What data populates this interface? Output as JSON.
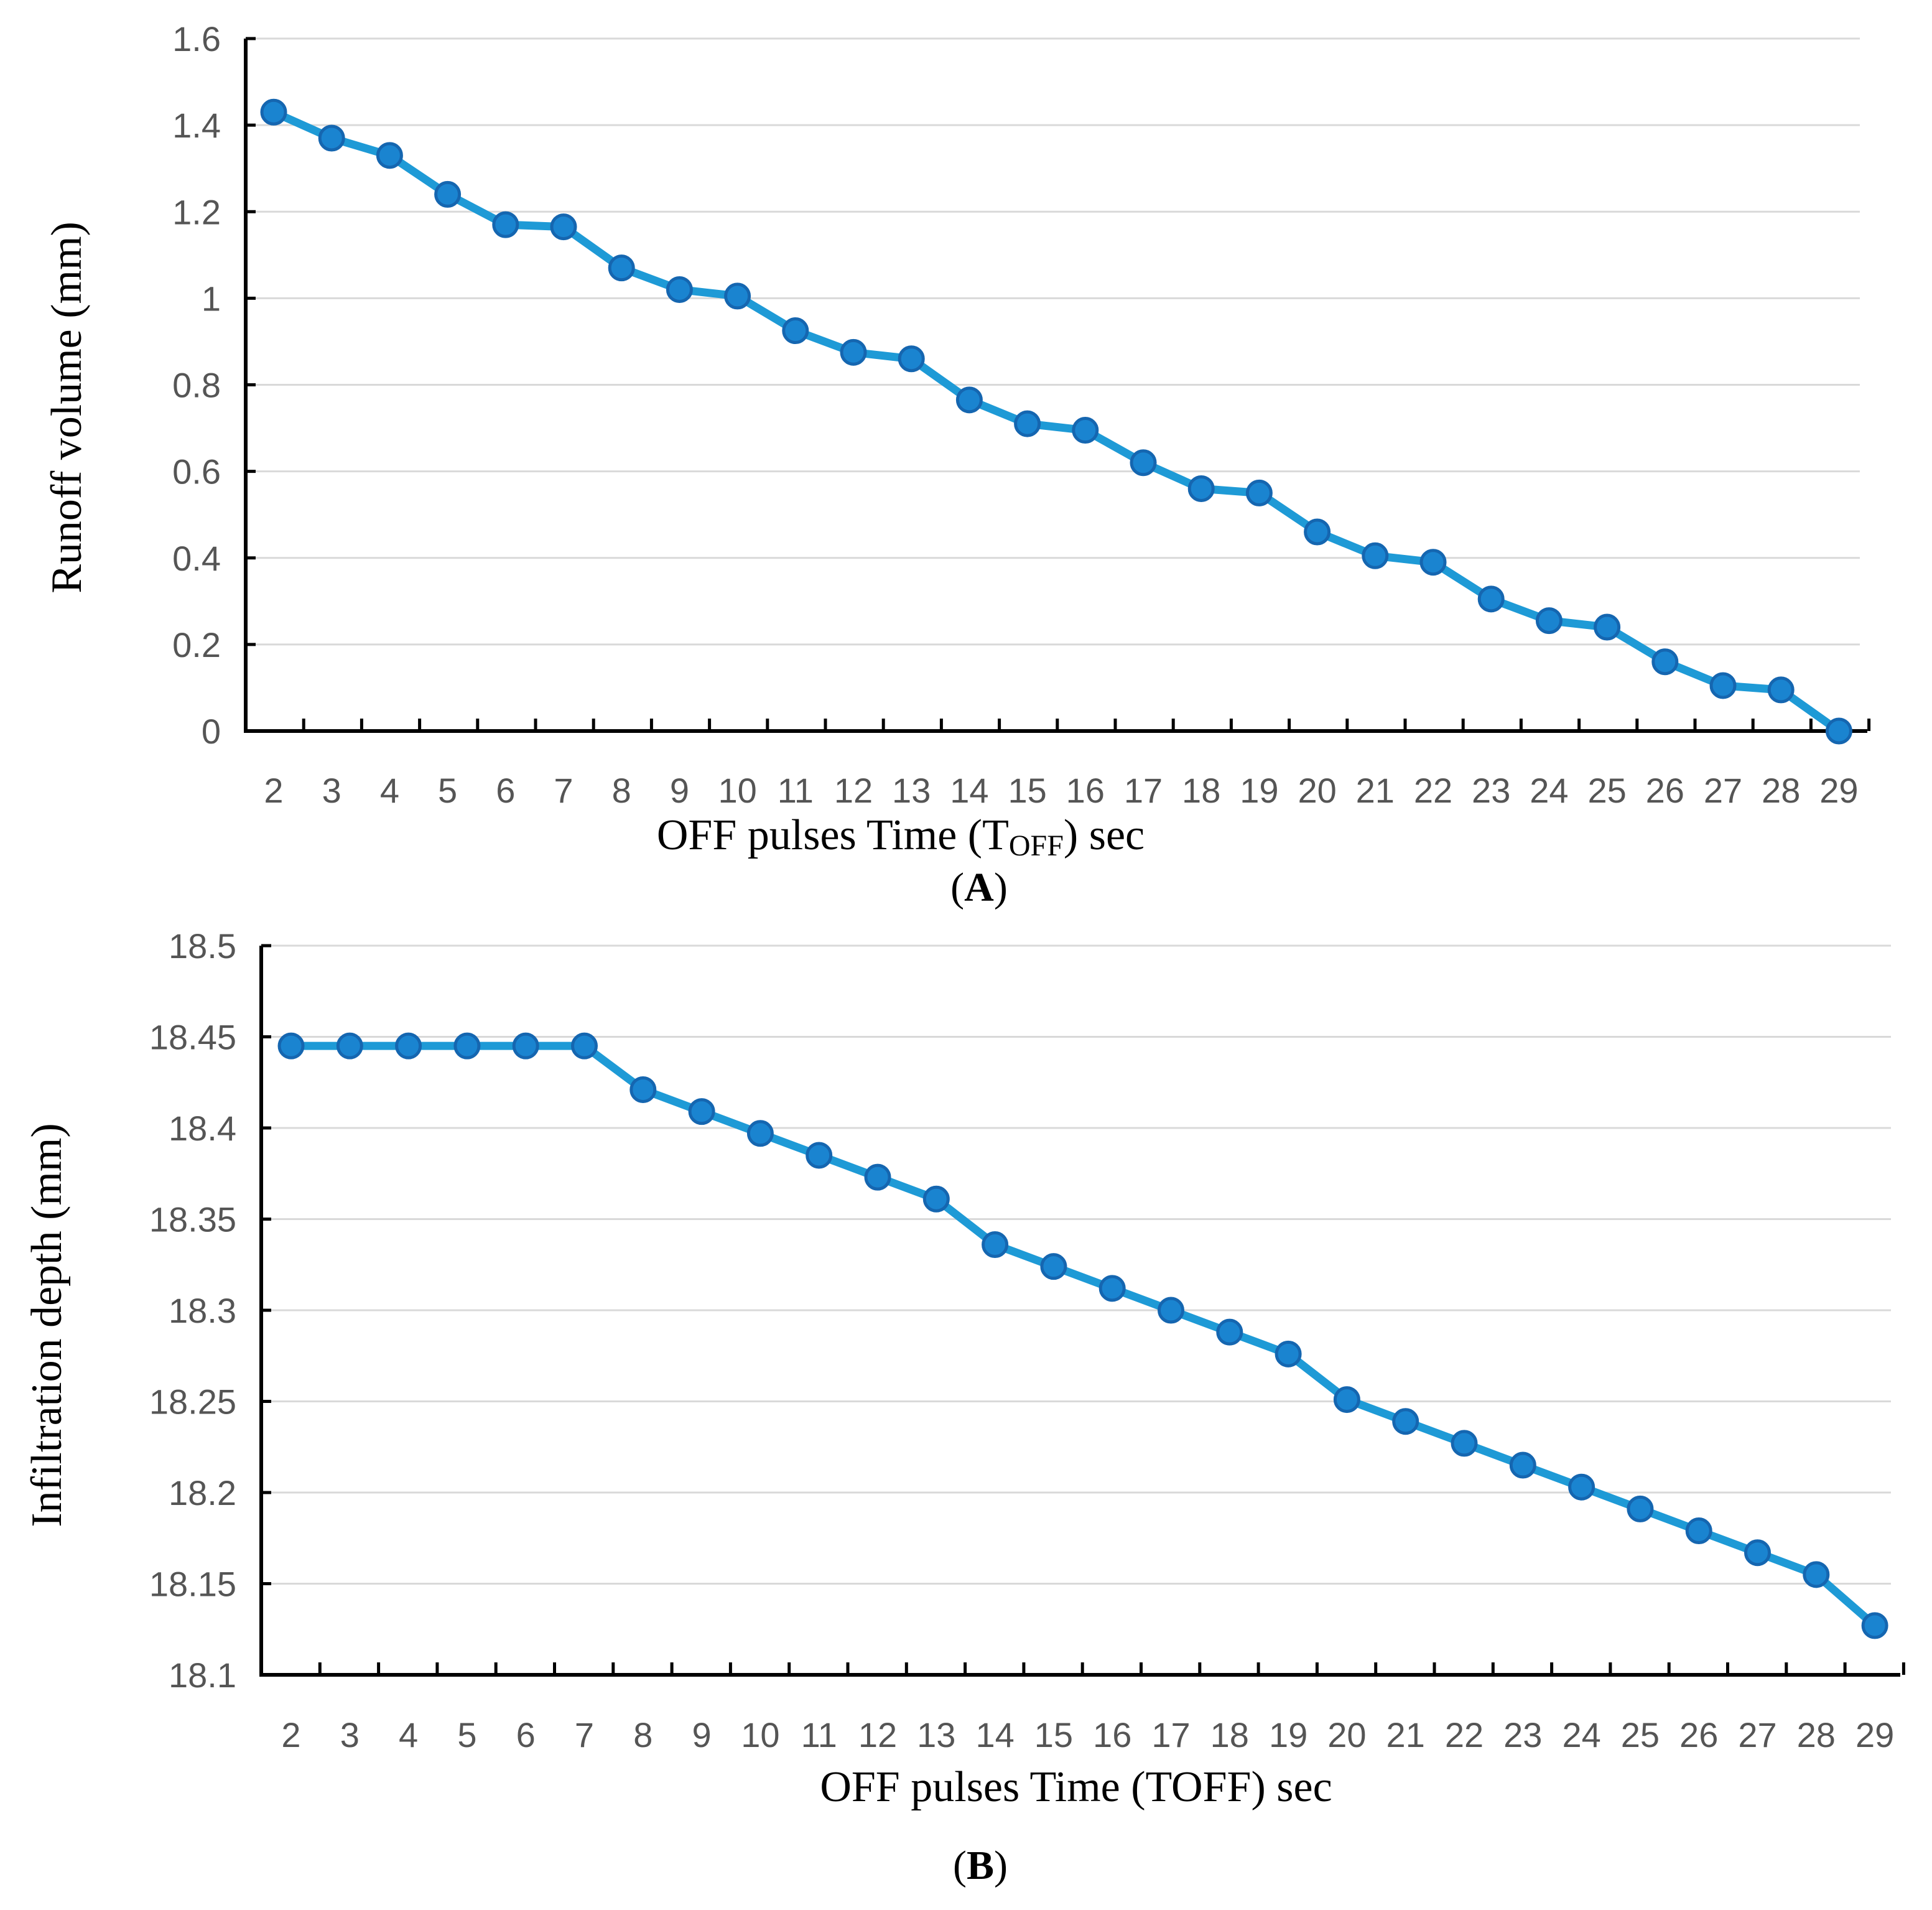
{
  "colors": {
    "series": "#1E9AD6",
    "marker_fill": "#1A84D0",
    "marker_edge": "#1566B0",
    "grid": "#D9D9D9",
    "axis": "#000000"
  },
  "chart_data": [
    {
      "type": "line",
      "panel_label": "A",
      "ylabel": "Runoff volume (mm)",
      "xlabel_main": "OFF pulses Time (T",
      "xlabel_sub": "OFF",
      "xlabel_tail": ") sec",
      "ylim": [
        0,
        1.6
      ],
      "yticks": [
        0,
        0.2,
        0.4,
        0.6,
        0.8,
        1,
        1.2,
        1.4,
        1.6
      ],
      "ytick_labels": [
        "0",
        "0.2",
        "0.4",
        "0.6",
        "0.8",
        "1",
        "1.2",
        "1.4",
        "1.6"
      ],
      "grid": true,
      "categories": [
        "2",
        "3",
        "4",
        "5",
        "6",
        "7",
        "8",
        "9",
        "10",
        "11",
        "12",
        "13",
        "14",
        "15",
        "16",
        "17",
        "18",
        "19",
        "20",
        "21",
        "22",
        "23",
        "24",
        "25",
        "26",
        "27",
        "28",
        "29"
      ],
      "series": [
        {
          "name": "Runoff volume",
          "values": [
            1.43,
            1.37,
            1.33,
            1.24,
            1.17,
            1.165,
            1.07,
            1.02,
            1.005,
            0.925,
            0.875,
            0.86,
            0.765,
            0.71,
            0.695,
            0.62,
            0.56,
            0.55,
            0.46,
            0.405,
            0.39,
            0.305,
            0.255,
            0.24,
            0.16,
            0.105,
            0.095,
            0.0
          ]
        }
      ]
    },
    {
      "type": "line",
      "panel_label": "B",
      "ylabel": "Infiltration depth (mm)",
      "xlabel_main": "OFF pulses Time (TOFF) sec",
      "ylim": [
        18.1,
        18.5
      ],
      "yticks": [
        18.1,
        18.15,
        18.2,
        18.25,
        18.3,
        18.35,
        18.4,
        18.45,
        18.5
      ],
      "ytick_labels": [
        "18.1",
        "18.15",
        "18.2",
        "18.25",
        "18.3",
        "18.35",
        "18.4",
        "18.45",
        "18.5"
      ],
      "grid": true,
      "categories": [
        "2",
        "3",
        "4",
        "5",
        "6",
        "7",
        "8",
        "9",
        "10",
        "11",
        "12",
        "13",
        "14",
        "15",
        "16",
        "17",
        "18",
        "19",
        "20",
        "21",
        "22",
        "23",
        "24",
        "25",
        "26",
        "27",
        "28",
        "29"
      ],
      "series": [
        {
          "name": "Infiltration depth",
          "values": [
            18.445,
            18.445,
            18.445,
            18.445,
            18.445,
            18.445,
            18.421,
            18.409,
            18.397,
            18.385,
            18.373,
            18.361,
            18.336,
            18.324,
            18.312,
            18.3,
            18.288,
            18.276,
            18.251,
            18.239,
            18.227,
            18.215,
            18.203,
            18.191,
            18.179,
            18.167,
            18.155,
            18.127
          ]
        }
      ]
    }
  ]
}
